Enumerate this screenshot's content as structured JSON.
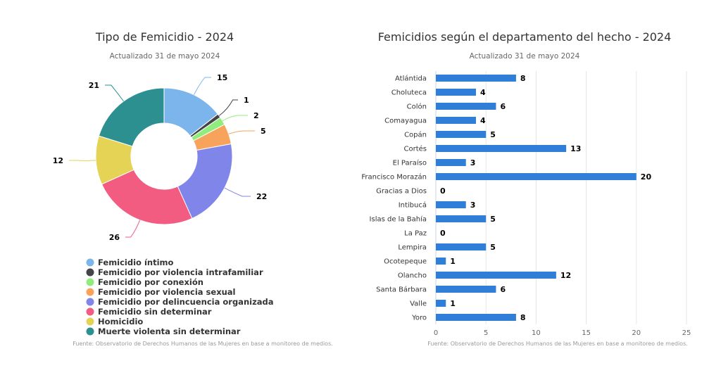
{
  "chart_data": [
    {
      "type": "pie",
      "title": "Tipo de Femicidio - 2024",
      "subtitle": "Actualizado 31 de mayo 2024",
      "source": "Fuente: Observatorio de Derechos Humanos de las Mujeres en base a monitoreo de medios.",
      "legend_position": "bottom-left",
      "categories": [
        "Femicidio íntimo",
        "Femicidio por violencia intrafamiliar",
        "Femicidio por conexión",
        "Femicidio por violencia sexual",
        "Femicidio por delincuencia organizada",
        "Femicidio sin determinar",
        "Homicidio",
        "Muerte violenta sin determinar"
      ],
      "values": [
        15,
        1,
        2,
        5,
        22,
        26,
        12,
        21
      ],
      "colors": [
        "#7cb5ec",
        "#434348",
        "#90ed7d",
        "#f7a35c",
        "#8085e9",
        "#f15c80",
        "#e4d354",
        "#2b908f"
      ]
    },
    {
      "type": "bar",
      "title": "Femicidios según el departamento del hecho - 2024",
      "subtitle": "Actualizado 31 de mayo 2024",
      "source": "Fuente: Observatorio de Derechos Humanos de las Mujeres en base a monitoreo de medios.",
      "orientation": "horizontal",
      "categories": [
        "Atlántida",
        "Choluteca",
        "Colón",
        "Comayagua",
        "Copán",
        "Cortés",
        "El Paraíso",
        "Francisco Morazán",
        "Gracias a Dios",
        "Intibucá",
        "Islas de la Bahía",
        "La Paz",
        "Lempira",
        "Ocotepeque",
        "Olancho",
        "Santa Bárbara",
        "Valle",
        "Yoro"
      ],
      "values": [
        8,
        4,
        6,
        4,
        5,
        13,
        3,
        20,
        0,
        3,
        5,
        0,
        5,
        1,
        12,
        6,
        1,
        8
      ],
      "xlim": [
        0,
        25
      ],
      "xticks": [
        "0",
        "5",
        "10",
        "15",
        "20",
        "25"
      ],
      "grid": true,
      "color": "#2f7ed8"
    }
  ]
}
